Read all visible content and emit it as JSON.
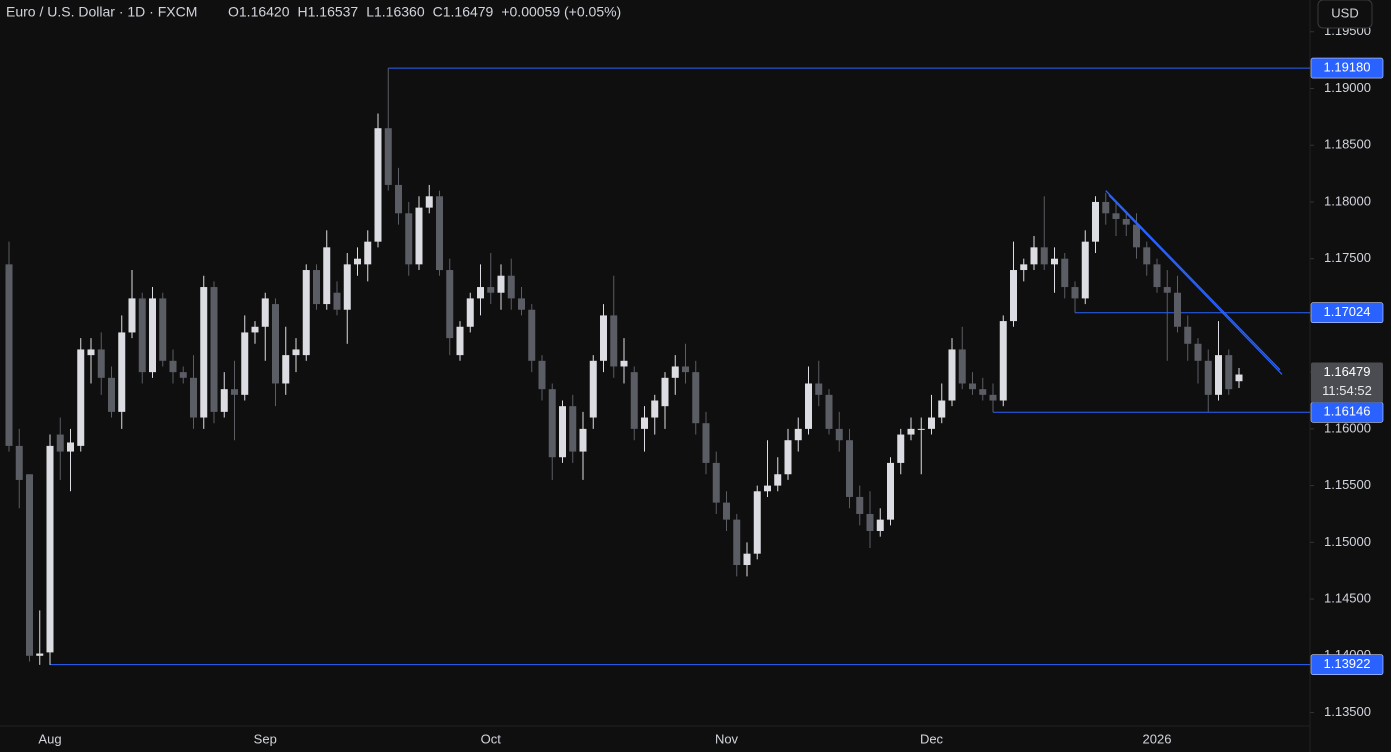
{
  "chart_data": {
    "type": "candlestick",
    "title": "Euro / U.S. Dollar · 1D · FXCM",
    "header_items": [
      "O1.16420",
      "H1.16537",
      "L1.16360",
      "C1.16479",
      "+0.00059 (+0.05%)"
    ],
    "currency": "USD",
    "up_color": "#dcdde2",
    "down_color": "#5b5d64",
    "line_color": "#2962ff",
    "categories": [
      null,
      null,
      null,
      null,
      "Aug",
      null,
      null,
      null,
      null,
      null,
      null,
      null,
      null,
      null,
      null,
      null,
      null,
      null,
      null,
      null,
      null,
      null,
      null,
      null,
      null,
      "Sep",
      null,
      null,
      null,
      null,
      null,
      null,
      null,
      null,
      null,
      null,
      null,
      null,
      null,
      null,
      null,
      null,
      null,
      null,
      null,
      null,
      null,
      "Oct",
      null,
      null,
      null,
      null,
      null,
      null,
      null,
      null,
      null,
      null,
      null,
      null,
      null,
      null,
      null,
      null,
      null,
      null,
      null,
      null,
      null,
      null,
      "Nov",
      null,
      null,
      null,
      null,
      null,
      null,
      null,
      null,
      null,
      null,
      null,
      null,
      null,
      null,
      null,
      null,
      null,
      null,
      null,
      "Dec",
      null,
      null,
      null,
      null,
      null,
      null,
      null,
      null,
      null,
      null,
      null,
      null,
      null,
      null,
      null,
      null,
      null,
      null,
      null,
      null,
      null,
      "2026",
      null,
      null,
      null,
      null,
      null,
      null,
      null,
      null
    ],
    "open": [
      1.1745,
      1.1585,
      1.156,
      1.14,
      1.1403,
      1.1595,
      1.158,
      1.1585,
      1.1665,
      1.167,
      1.1645,
      1.1615,
      1.1685,
      1.1715,
      1.165,
      1.1715,
      1.166,
      1.165,
      1.1645,
      1.161,
      1.1725,
      1.1615,
      1.1635,
      1.163,
      1.1685,
      1.169,
      1.171,
      1.164,
      1.1665,
      1.1665,
      1.174,
      1.171,
      1.172,
      1.1705,
      1.1745,
      1.1745,
      1.1765,
      1.1865,
      1.1815,
      1.179,
      1.1745,
      1.1795,
      1.1805,
      1.174,
      1.1665,
      1.169,
      1.1715,
      1.1725,
      1.172,
      1.1735,
      1.1715,
      1.1705,
      1.166,
      1.1635,
      1.1575,
      1.162,
      1.158,
      1.161,
      1.166,
      1.17,
      1.1655,
      1.165,
      1.16,
      1.161,
      1.162,
      1.1645,
      1.1655,
      1.165,
      1.1605,
      1.157,
      1.1535,
      1.152,
      1.148,
      1.149,
      1.1545,
      1.155,
      1.156,
      1.159,
      1.16,
      1.164,
      1.163,
      1.16,
      1.159,
      1.154,
      1.1525,
      1.151,
      1.152,
      1.157,
      1.1595,
      1.16,
      1.16,
      1.161,
      1.1625,
      1.167,
      1.164,
      1.1635,
      1.163,
      1.1625,
      1.1695,
      1.174,
      1.1745,
      1.176,
      1.1745,
      1.175,
      1.1725,
      1.1715,
      1.1765,
      1.18,
      1.179,
      1.1785,
      1.178,
      1.176,
      1.1745,
      1.1725,
      1.172,
      1.169,
      1.1675,
      1.166,
      1.163,
      1.1665,
      1.1642
    ],
    "high": [
      1.1765,
      1.16,
      1.156,
      1.144,
      1.1595,
      1.161,
      1.16,
      1.168,
      1.168,
      1.1685,
      1.1655,
      1.17,
      1.174,
      1.172,
      1.1725,
      1.172,
      1.167,
      1.1655,
      1.1665,
      1.1735,
      1.173,
      1.165,
      1.166,
      1.17,
      1.1695,
      1.172,
      1.1715,
      1.169,
      1.168,
      1.1745,
      1.1745,
      1.1775,
      1.173,
      1.1755,
      1.176,
      1.1775,
      1.1878,
      1.1918,
      1.183,
      1.18,
      1.1805,
      1.1815,
      1.181,
      1.175,
      1.1695,
      1.172,
      1.1745,
      1.1755,
      1.1745,
      1.175,
      1.1725,
      1.171,
      1.1665,
      1.164,
      1.1625,
      1.163,
      1.1615,
      1.1665,
      1.171,
      1.1735,
      1.168,
      1.1655,
      1.162,
      1.163,
      1.165,
      1.1665,
      1.1675,
      1.166,
      1.1615,
      1.158,
      1.1545,
      1.1525,
      1.15,
      1.155,
      1.159,
      1.1575,
      1.16,
      1.161,
      1.1655,
      1.166,
      1.1635,
      1.1615,
      1.16,
      1.155,
      1.1545,
      1.153,
      1.1575,
      1.16,
      1.161,
      1.161,
      1.163,
      1.164,
      1.168,
      1.169,
      1.165,
      1.1645,
      1.164,
      1.17,
      1.1765,
      1.175,
      1.177,
      1.1805,
      1.176,
      1.1755,
      1.173,
      1.1775,
      1.1805,
      1.1808,
      1.18,
      1.179,
      1.179,
      1.1765,
      1.175,
      1.174,
      1.1735,
      1.17,
      1.168,
      1.167,
      1.1695,
      1.167,
      1.16537
    ],
    "low": [
      1.158,
      1.153,
      1.1395,
      1.1392,
      1.1392,
      1.1555,
      1.1545,
      1.158,
      1.164,
      1.163,
      1.161,
      1.16,
      1.168,
      1.164,
      1.1645,
      1.1655,
      1.164,
      1.164,
      1.16,
      1.16,
      1.1605,
      1.161,
      1.159,
      1.1625,
      1.1675,
      1.166,
      1.162,
      1.163,
      1.165,
      1.166,
      1.1705,
      1.1705,
      1.17,
      1.1675,
      1.1735,
      1.173,
      1.176,
      1.181,
      1.178,
      1.1735,
      1.174,
      1.179,
      1.1735,
      1.1665,
      1.166,
      1.1685,
      1.17,
      1.171,
      1.1705,
      1.1705,
      1.17,
      1.165,
      1.1625,
      1.1555,
      1.157,
      1.157,
      1.1555,
      1.16,
      1.165,
      1.1645,
      1.164,
      1.159,
      1.158,
      1.1595,
      1.16,
      1.163,
      1.164,
      1.1595,
      1.156,
      1.1525,
      1.151,
      1.147,
      1.147,
      1.1485,
      1.154,
      1.1545,
      1.1555,
      1.158,
      1.1595,
      1.162,
      1.1595,
      1.158,
      1.153,
      1.1515,
      1.1495,
      1.1505,
      1.1515,
      1.156,
      1.159,
      1.156,
      1.1595,
      1.1605,
      1.162,
      1.1635,
      1.163,
      1.1625,
      1.16146,
      1.162,
      1.169,
      1.173,
      1.174,
      1.174,
      1.172,
      1.1715,
      1.17024,
      1.171,
      1.1755,
      1.178,
      1.177,
      1.177,
      1.175,
      1.1735,
      1.172,
      1.166,
      1.1685,
      1.166,
      1.164,
      1.1615,
      1.1625,
      1.163,
      1.1636
    ],
    "close": [
      1.1585,
      1.1555,
      1.14,
      1.1402,
      1.1585,
      1.158,
      1.1588,
      1.167,
      1.167,
      1.1645,
      1.1615,
      1.1685,
      1.1715,
      1.165,
      1.1715,
      1.166,
      1.165,
      1.1645,
      1.161,
      1.1725,
      1.1615,
      1.1635,
      1.163,
      1.1685,
      1.169,
      1.1715,
      1.164,
      1.1665,
      1.167,
      1.174,
      1.171,
      1.176,
      1.1705,
      1.1745,
      1.175,
      1.1765,
      1.1865,
      1.1815,
      1.179,
      1.1745,
      1.1795,
      1.1805,
      1.174,
      1.168,
      1.169,
      1.1715,
      1.1725,
      1.172,
      1.1735,
      1.1715,
      1.1705,
      1.166,
      1.1635,
      1.1575,
      1.162,
      1.158,
      1.16,
      1.166,
      1.17,
      1.1655,
      1.166,
      1.16,
      1.161,
      1.1625,
      1.1645,
      1.1655,
      1.165,
      1.1605,
      1.157,
      1.1535,
      1.152,
      1.148,
      1.149,
      1.1545,
      1.155,
      1.156,
      1.159,
      1.16,
      1.164,
      1.163,
      1.16,
      1.159,
      1.154,
      1.1525,
      1.151,
      1.152,
      1.157,
      1.1595,
      1.16,
      1.16,
      1.161,
      1.1625,
      1.167,
      1.164,
      1.1635,
      1.163,
      1.1625,
      1.1695,
      1.174,
      1.1745,
      1.176,
      1.1745,
      1.175,
      1.1725,
      1.1715,
      1.1765,
      1.18,
      1.179,
      1.1785,
      1.178,
      1.176,
      1.1745,
      1.1725,
      1.172,
      1.169,
      1.1675,
      1.166,
      1.163,
      1.1665,
      1.1635,
      1.16479
    ],
    "ylim": [
      1.1339,
      1.1978
    ],
    "yticks": [
      {
        "value": 1.135,
        "label": "1.13500"
      },
      {
        "value": 1.14,
        "label": "1.14000"
      },
      {
        "value": 1.145,
        "label": "1.14500"
      },
      {
        "value": 1.15,
        "label": "1.15000"
      },
      {
        "value": 1.155,
        "label": "1.15500"
      },
      {
        "value": 1.16,
        "label": "1.16000"
      },
      {
        "value": 1.165,
        "label": "1.16500"
      },
      {
        "value": 1.17,
        "label": "1.17000"
      },
      {
        "value": 1.175,
        "label": "1.17500"
      },
      {
        "value": 1.18,
        "label": "1.18000"
      },
      {
        "value": 1.185,
        "label": "1.18500"
      },
      {
        "value": 1.19,
        "label": "1.19000"
      },
      {
        "value": 1.195,
        "label": "1.19500"
      }
    ],
    "levels": [
      {
        "value": 1.1918,
        "label": "1.19180",
        "from_index": 37
      },
      {
        "value": 1.17024,
        "label": "1.17024",
        "from_index": 104
      },
      {
        "value": 1.16146,
        "label": "1.16146",
        "from_index": 96
      },
      {
        "value": 1.13922,
        "label": "1.13922",
        "from_index": 4
      }
    ],
    "trendlines": [
      {
        "from_index": 107,
        "from": 1.181,
        "to_index": 124,
        "to": 1.1652
      },
      {
        "from_index": 107.3,
        "from": 1.1806,
        "to_index": 124.2,
        "to": 1.1648
      }
    ],
    "last_price": {
      "value": 1.16479,
      "label": "1.16479"
    },
    "countdown": "11:54:52"
  }
}
